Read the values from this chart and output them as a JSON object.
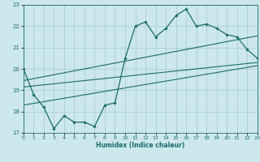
{
  "xlabel": "Humidex (Indice chaleur)",
  "bg_color": "#cce8ec",
  "grid_color": "#aacdd4",
  "line_color": "#1a6b6b",
  "xlim": [
    0,
    23
  ],
  "ylim": [
    17,
    23
  ],
  "xticks": [
    0,
    1,
    2,
    3,
    4,
    5,
    6,
    7,
    8,
    9,
    10,
    11,
    12,
    13,
    14,
    15,
    16,
    17,
    18,
    19,
    20,
    21,
    22,
    23
  ],
  "yticks": [
    17,
    18,
    19,
    20,
    21,
    22,
    23
  ],
  "main_x": [
    0,
    1,
    2,
    3,
    4,
    5,
    6,
    7,
    8,
    9,
    10,
    11,
    12,
    13,
    14,
    15,
    16,
    17,
    18,
    19,
    20,
    21,
    22,
    23
  ],
  "main_y": [
    20,
    18.8,
    18.2,
    17.2,
    17.8,
    17.5,
    17.5,
    17.3,
    18.3,
    18.4,
    20.5,
    22.0,
    22.2,
    21.5,
    21.9,
    22.5,
    22.8,
    22.0,
    22.1,
    21.9,
    21.6,
    21.5,
    20.9,
    20.5
  ],
  "line1_x": [
    0,
    23
  ],
  "line1_y": [
    19.15,
    20.3
  ],
  "line2_x": [
    0,
    23
  ],
  "line2_y": [
    19.45,
    21.55
  ],
  "line3_x": [
    0,
    23
  ],
  "line3_y": [
    18.3,
    20.15
  ]
}
